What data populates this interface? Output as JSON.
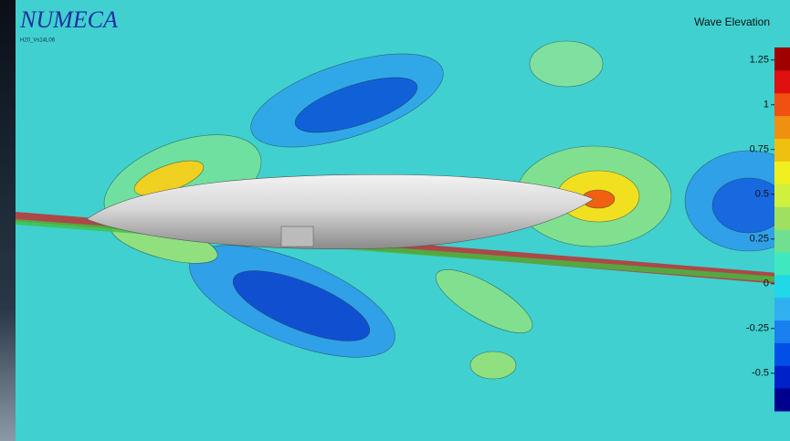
{
  "header": {
    "logo": "NUMECA",
    "case": "H20_Vs14L06"
  },
  "legend": {
    "title": "Wave Elevation",
    "range": [
      -0.71,
      1.32
    ],
    "ticks": [
      1.25,
      1,
      0.75,
      0.5,
      0.25,
      0,
      -0.25,
      -0.5
    ],
    "colors": [
      "#00008f",
      "#0020c8",
      "#0050e8",
      "#1a80f0",
      "#30b0f0",
      "#20d8e8",
      "#40e8c0",
      "#70e090",
      "#a0e060",
      "#d0f040",
      "#f0f020",
      "#f0c010",
      "#f09010",
      "#f05010",
      "#e01010",
      "#a00000"
    ]
  }
}
